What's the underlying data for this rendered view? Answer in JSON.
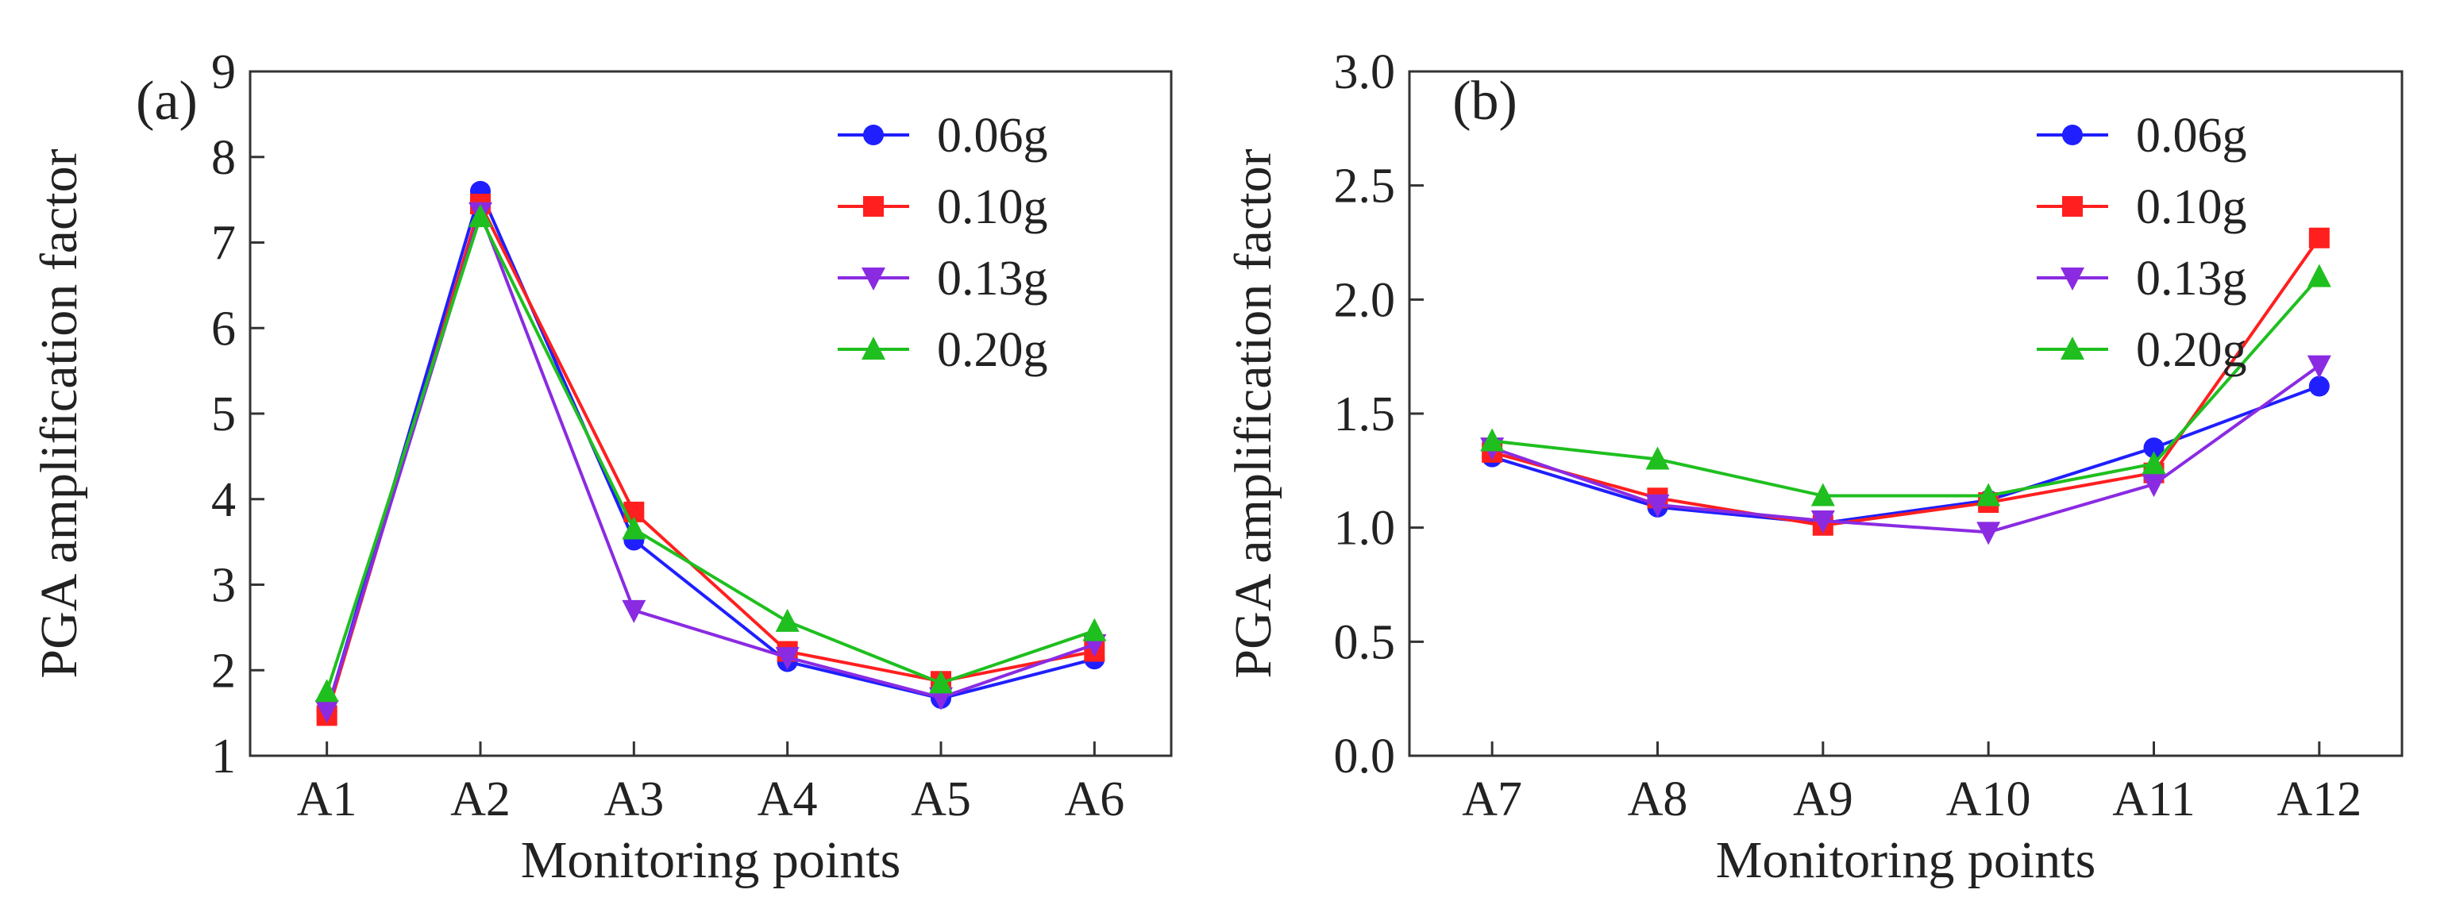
{
  "chart_data": [
    {
      "type": "line",
      "panel_label": "(a)",
      "xlabel": "Monitoring points",
      "ylabel": "PGA amplification factor",
      "categories": [
        "A1",
        "A2",
        "A3",
        "A4",
        "A5",
        "A6"
      ],
      "ylim": [
        1,
        9
      ],
      "yticks": [
        "1",
        "2",
        "3",
        "4",
        "5",
        "6",
        "7",
        "8",
        "9"
      ],
      "ytick_values": [
        1,
        2,
        3,
        4,
        5,
        6,
        7,
        8,
        9
      ],
      "legend_position": "top-right",
      "series": [
        {
          "name": "0.06g",
          "color": "#1f1fff",
          "marker": "circle",
          "values": [
            1.52,
            7.6,
            3.52,
            2.1,
            1.67,
            2.13
          ]
        },
        {
          "name": "0.10g",
          "color": "#ff1f1f",
          "marker": "square",
          "values": [
            1.47,
            7.45,
            3.85,
            2.22,
            1.87,
            2.22
          ]
        },
        {
          "name": "0.13g",
          "color": "#8a2be2",
          "marker": "triangle-down",
          "values": [
            1.53,
            7.35,
            2.7,
            2.15,
            1.68,
            2.3
          ]
        },
        {
          "name": "0.20g",
          "color": "#1fbf1f",
          "marker": "triangle-up",
          "values": [
            1.75,
            7.3,
            3.65,
            2.57,
            1.85,
            2.46
          ]
        }
      ]
    },
    {
      "type": "line",
      "panel_label": "(b)",
      "xlabel": "Monitoring points",
      "ylabel": "PGA amplification factor",
      "categories": [
        "A7",
        "A8",
        "A9",
        "A10",
        "A11",
        "A12"
      ],
      "ylim": [
        0,
        3
      ],
      "yticks": [
        "0.0",
        "0.5",
        "1.0",
        "1.5",
        "2.0",
        "2.5",
        "3.0"
      ],
      "ytick_values": [
        0,
        0.5,
        1.0,
        1.5,
        2.0,
        2.5,
        3.0
      ],
      "legend_position": "top-right",
      "series": [
        {
          "name": "0.06g",
          "color": "#1f1fff",
          "marker": "circle",
          "values": [
            1.31,
            1.09,
            1.02,
            1.12,
            1.35,
            1.62
          ]
        },
        {
          "name": "0.10g",
          "color": "#ff1f1f",
          "marker": "square",
          "values": [
            1.33,
            1.13,
            1.01,
            1.11,
            1.24,
            2.27
          ]
        },
        {
          "name": "0.13g",
          "color": "#8a2be2",
          "marker": "triangle-down",
          "values": [
            1.35,
            1.1,
            1.03,
            0.98,
            1.19,
            1.71
          ]
        },
        {
          "name": "0.20g",
          "color": "#1fbf1f",
          "marker": "triangle-up",
          "values": [
            1.38,
            1.3,
            1.14,
            1.14,
            1.28,
            2.1
          ]
        }
      ]
    }
  ]
}
